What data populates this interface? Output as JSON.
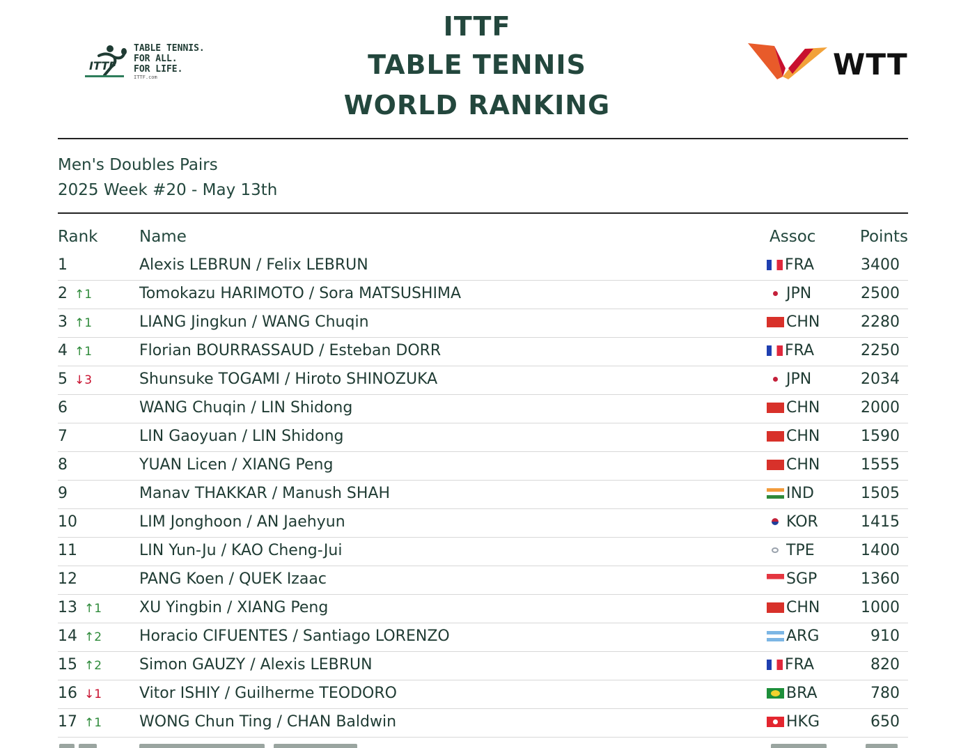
{
  "header": {
    "ittf_logo": {
      "icon": "table-tennis-player-icon",
      "slogan_lines": [
        "TABLE TENNIS.",
        "FOR ALL.",
        "FOR LIFE."
      ],
      "url": "ITTF.com"
    },
    "title_line1": "ITTF",
    "title_line2": "TABLE TENNIS",
    "title_line3": "WORLD RANKING",
    "wtt_logo": {
      "text": "WTT",
      "mark_colors": [
        "#e85b2a",
        "#c8102e",
        "#f2a23a"
      ]
    }
  },
  "subheader": {
    "category": "Men's Doubles Pairs",
    "week": "2025 Week #20 - May 13th"
  },
  "table": {
    "columns": {
      "rank": "Rank",
      "name": "Name",
      "assoc": "Assoc",
      "points": "Points"
    },
    "rows": [
      {
        "rank": "1",
        "move": "",
        "dir": "",
        "name": "Alexis LEBRUN / Felix LEBRUN",
        "flag": "fra",
        "assoc": "FRA",
        "points": "3400"
      },
      {
        "rank": "2",
        "move": "↑1",
        "dir": "up",
        "name": "Tomokazu HARIMOTO / Sora MATSUSHIMA",
        "flag": "jpn",
        "assoc": "JPN",
        "points": "2500"
      },
      {
        "rank": "3",
        "move": "↑1",
        "dir": "up",
        "name": "LIANG Jingkun / WANG Chuqin",
        "flag": "chn",
        "assoc": "CHN",
        "points": "2280"
      },
      {
        "rank": "4",
        "move": "↑1",
        "dir": "up",
        "name": "Florian BOURRASSAUD / Esteban DORR",
        "flag": "fra",
        "assoc": "FRA",
        "points": "2250"
      },
      {
        "rank": "5",
        "move": "↓3",
        "dir": "down",
        "name": "Shunsuke TOGAMI / Hiroto SHINOZUKA",
        "flag": "jpn",
        "assoc": "JPN",
        "points": "2034"
      },
      {
        "rank": "6",
        "move": "",
        "dir": "",
        "name": "WANG Chuqin / LIN Shidong",
        "flag": "chn",
        "assoc": "CHN",
        "points": "2000"
      },
      {
        "rank": "7",
        "move": "",
        "dir": "",
        "name": "LIN Gaoyuan / LIN Shidong",
        "flag": "chn",
        "assoc": "CHN",
        "points": "1590"
      },
      {
        "rank": "8",
        "move": "",
        "dir": "",
        "name": "YUAN Licen / XIANG Peng",
        "flag": "chn",
        "assoc": "CHN",
        "points": "1555"
      },
      {
        "rank": "9",
        "move": "",
        "dir": "",
        "name": "Manav THAKKAR / Manush SHAH",
        "flag": "ind",
        "assoc": "IND",
        "points": "1505"
      },
      {
        "rank": "10",
        "move": "",
        "dir": "",
        "name": "LIM Jonghoon / AN Jaehyun",
        "flag": "kor",
        "assoc": "KOR",
        "points": "1415"
      },
      {
        "rank": "11",
        "move": "",
        "dir": "",
        "name": "LIN Yun-Ju / KAO Cheng-Jui",
        "flag": "tpe",
        "assoc": "TPE",
        "points": "1400"
      },
      {
        "rank": "12",
        "move": "",
        "dir": "",
        "name": "PANG Koen / QUEK Izaac",
        "flag": "sgp",
        "assoc": "SGP",
        "points": "1360"
      },
      {
        "rank": "13",
        "move": "↑1",
        "dir": "up",
        "name": "XU Yingbin / XIANG Peng",
        "flag": "chn",
        "assoc": "CHN",
        "points": "1000"
      },
      {
        "rank": "14",
        "move": "↑2",
        "dir": "up",
        "name": "Horacio CIFUENTES / Santiago LORENZO",
        "flag": "arg",
        "assoc": "ARG",
        "points": "910"
      },
      {
        "rank": "15",
        "move": "↑2",
        "dir": "up",
        "name": "Simon GAUZY / Alexis LEBRUN",
        "flag": "fra",
        "assoc": "FRA",
        "points": "820"
      },
      {
        "rank": "16",
        "move": "↓1",
        "dir": "down",
        "name": "Vitor ISHIY / Guilherme TEODORO",
        "flag": "bra",
        "assoc": "BRA",
        "points": "780"
      },
      {
        "rank": "17",
        "move": "↑1",
        "dir": "up",
        "name": "WONG Chun Ting / CHAN Baldwin",
        "flag": "hkg",
        "assoc": "HKG",
        "points": "650"
      }
    ]
  },
  "colors": {
    "text": "#1f3b33",
    "title": "#23473d",
    "up_arrow": "#2e8a3a",
    "down_arrow": "#c8102e",
    "rule": "#222222"
  }
}
